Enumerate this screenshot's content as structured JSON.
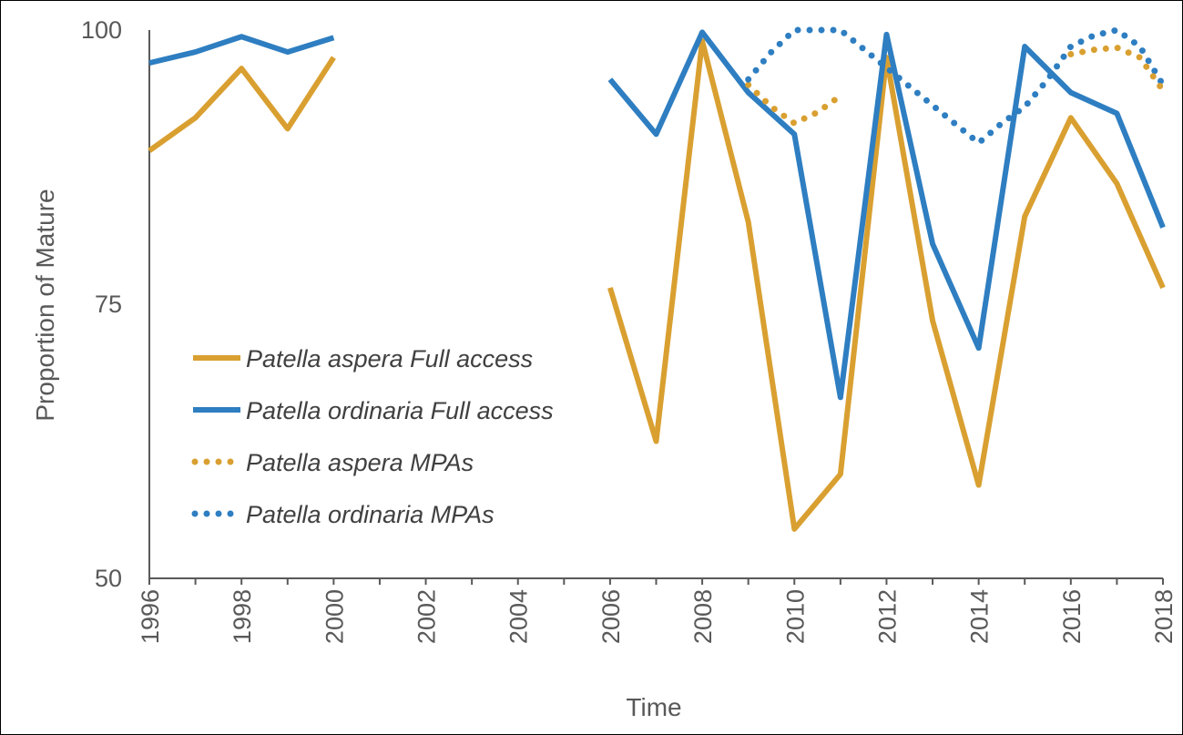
{
  "chart_data": {
    "type": "line",
    "xlabel": "Time",
    "ylabel": "Proportion of Mature",
    "ylim": [
      50,
      100
    ],
    "xlim": [
      1996,
      2018
    ],
    "yticks": [
      "50",
      "75",
      "100"
    ],
    "xticks": [
      "1996",
      "1998",
      "2000",
      "2002",
      "2004",
      "2006",
      "2008",
      "2010",
      "2012",
      "2014",
      "2016",
      "2018"
    ],
    "grid": false,
    "legend_position": "left-center",
    "series": [
      {
        "name": "Patella aspera Full access",
        "color": "#D9A031",
        "style": "solid",
        "x": [
          1996,
          1997,
          1998,
          1999,
          2000,
          2001,
          2002,
          2003,
          2004,
          2005,
          2006,
          2007,
          2008,
          2009,
          2010,
          2011,
          2012,
          2013,
          2014,
          2015,
          2016,
          2017,
          2018
        ],
        "values": [
          89,
          92,
          96.5,
          91,
          97.5,
          null,
          null,
          null,
          null,
          null,
          76.5,
          62.5,
          99,
          82.5,
          54.5,
          59.5,
          97.5,
          73.5,
          58.5,
          83,
          92,
          86,
          76.5
        ]
      },
      {
        "name": "Patella ordinaria Full access",
        "color": "#2E7EC1",
        "style": "solid",
        "x": [
          1996,
          1997,
          1998,
          1999,
          2000,
          2001,
          2002,
          2003,
          2004,
          2005,
          2006,
          2007,
          2008,
          2009,
          2010,
          2011,
          2012,
          2013,
          2014,
          2015,
          2016,
          2017,
          2018
        ],
        "values": [
          97,
          98,
          99.4,
          98,
          99.3,
          null,
          null,
          null,
          null,
          null,
          95.5,
          90.5,
          99.8,
          94.3,
          90.5,
          66.5,
          99.6,
          80.5,
          71,
          98.5,
          94.3,
          92.4,
          82
        ]
      },
      {
        "name": "Patella aspera MPAs",
        "color": "#D9A031",
        "style": "dotted",
        "x": [
          2009,
          2009.5,
          2010,
          2010.5,
          2011
        ],
        "values": [
          95,
          93,
          91.5,
          92.5,
          94
        ]
      },
      {
        "name": "Patella ordinaria MPAs",
        "color": "#2E7EC1",
        "style": "dotted",
        "x": [
          2009,
          2009.5,
          2010,
          2010.5,
          2011,
          2014,
          2014.5,
          2015,
          2015.5,
          2016,
          2016.5,
          2017,
          2017.5,
          2018
        ],
        "values": [
          95.5,
          98,
          100,
          100,
          100,
          89.7,
          91.5,
          93,
          95.5,
          98.5,
          99.5,
          100,
          98.5,
          95
        ]
      },
      {
        "name": "Patella aspera MPAs (2016-2018)",
        "color": "#D9A031",
        "style": "dotted",
        "legend": false,
        "x": [
          2016,
          2016.5,
          2017,
          2017.5,
          2018
        ],
        "values": [
          97.8,
          98.2,
          98.4,
          97.5,
          94.5
        ]
      }
    ]
  }
}
